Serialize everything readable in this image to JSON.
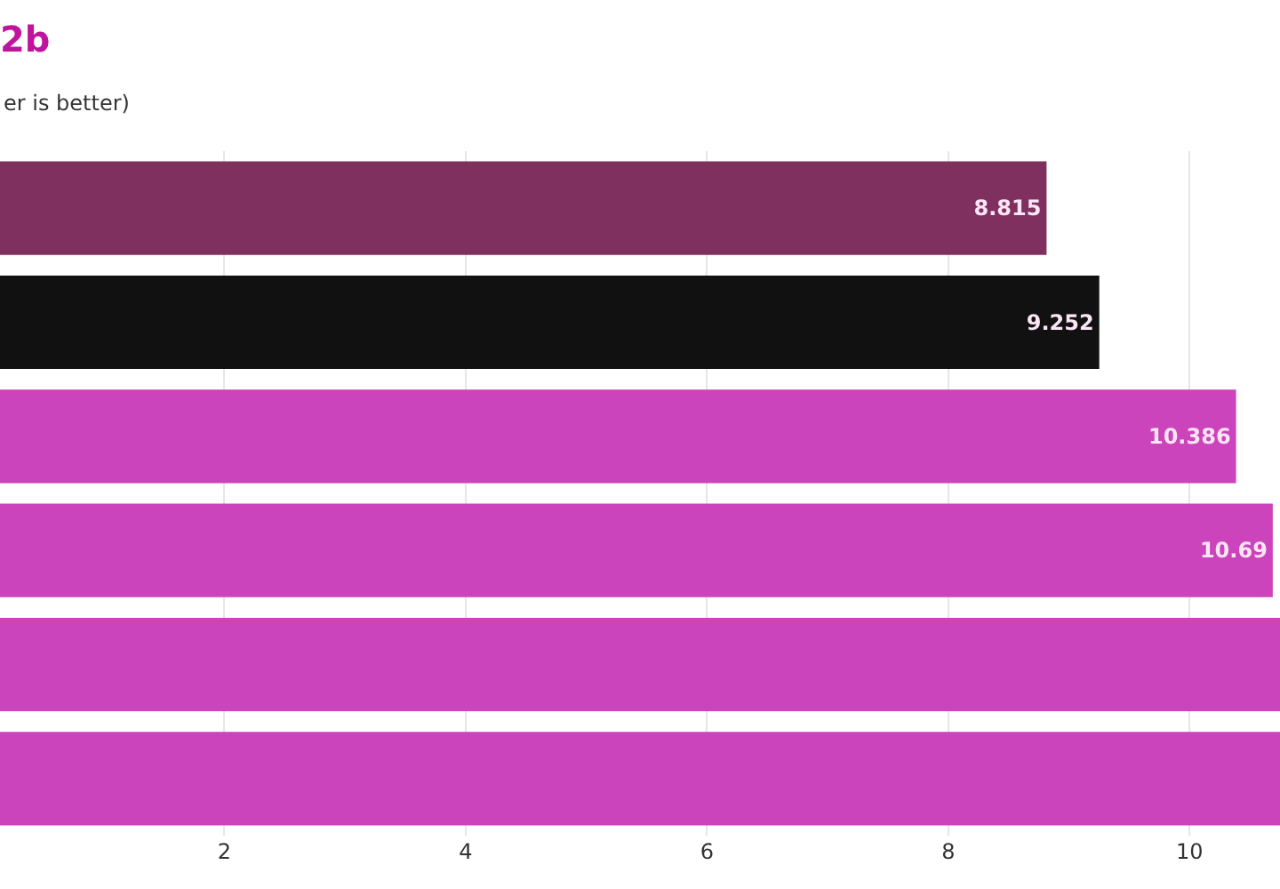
{
  "chart_data": {
    "type": "bar",
    "orientation": "horizontal",
    "title": "2b",
    "subtitle": "er is better)",
    "categories": [
      null,
      null,
      null,
      null,
      null,
      null
    ],
    "values": [
      8.815,
      9.252,
      10.386,
      10.69,
      10.75,
      10.75
    ],
    "colors": [
      "#80305f",
      "#111111",
      "#cc44bb",
      "#cc44bb",
      "#cc44bb",
      "#cc44bb"
    ],
    "value_labels": [
      "8.815",
      "9.252",
      "10.386",
      "10.69",
      null,
      null
    ],
    "xlim": [
      0.14,
      10.75
    ],
    "xticks": [
      2,
      4,
      6,
      8,
      10
    ],
    "grid": "x"
  }
}
